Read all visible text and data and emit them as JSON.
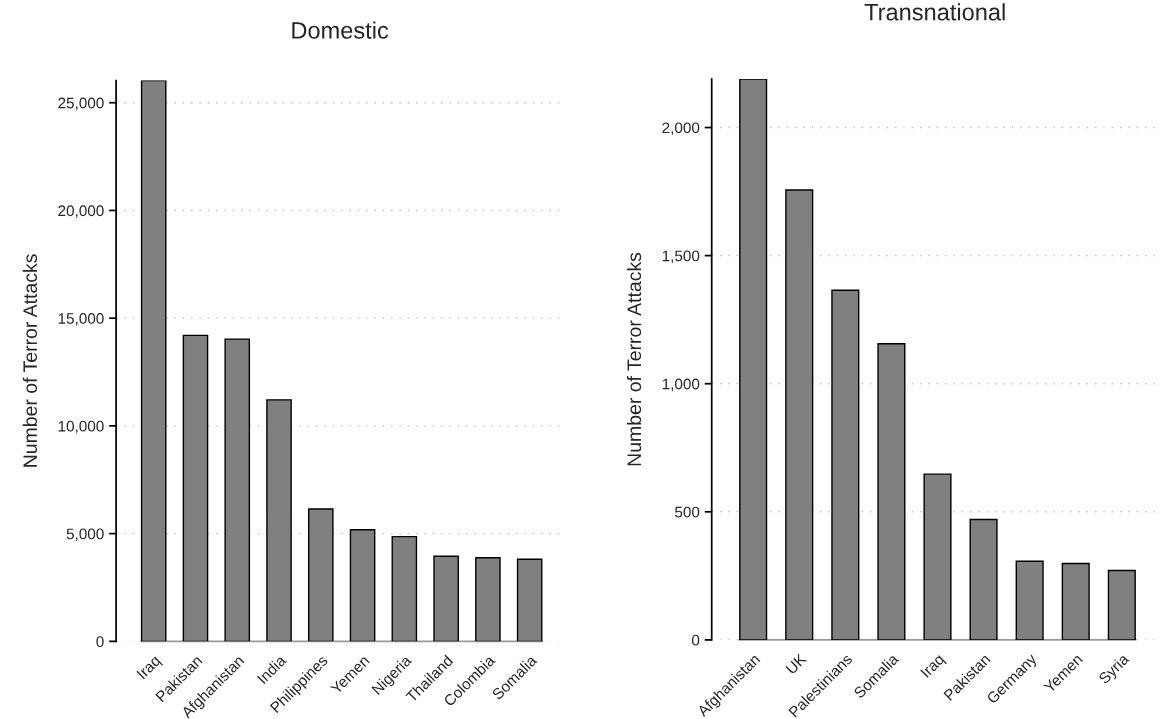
{
  "chart_data": [
    {
      "type": "bar",
      "title": "Domestic",
      "ylabel": "Number of Terror Attacks",
      "categories": [
        "Iraq",
        "Pakistan",
        "Afghanistan",
        "India",
        "Philippines",
        "Yemen",
        "Nigeria",
        "Thailand",
        "Colombia",
        "Somalia"
      ],
      "values": [
        26030,
        14200,
        14030,
        11210,
        6140,
        5180,
        4860,
        3950,
        3880,
        3810
      ],
      "color": "#808080",
      "ylim": [
        0,
        26030
      ],
      "yticks": [
        {
          "value": 0,
          "label": "0"
        },
        {
          "value": 5000,
          "label": "5,000"
        },
        {
          "value": 10000,
          "label": "10,000"
        },
        {
          "value": 15000,
          "label": "15,000"
        },
        {
          "value": 20000,
          "label": "20,000"
        },
        {
          "value": 25000,
          "label": "25,000"
        }
      ],
      "grid": "y"
    },
    {
      "type": "bar",
      "title": "Transnational",
      "ylabel": "Number of Terror Attacks",
      "categories": [
        "Afghanistan",
        "UK",
        "Palestinians",
        "Somalia",
        "Iraq",
        "Pakistan",
        "Germany",
        "Yemen",
        "Syria"
      ],
      "values": [
        2189,
        1756,
        1365,
        1156,
        647,
        470,
        307,
        298,
        271
      ],
      "color": "#808080",
      "ylim": [
        0,
        2189
      ],
      "yticks": [
        {
          "value": 0,
          "label": "0"
        },
        {
          "value": 500,
          "label": "500"
        },
        {
          "value": 1000,
          "label": "1,000"
        },
        {
          "value": 1500,
          "label": "1,500"
        },
        {
          "value": 2000,
          "label": "2,000"
        }
      ],
      "grid": "y"
    }
  ]
}
